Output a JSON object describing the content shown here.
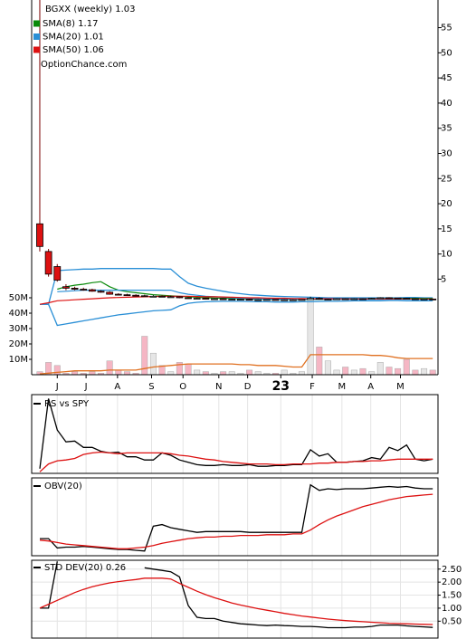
{
  "chart_data": [
    {
      "type": "candlestick",
      "title": "BGXX (weekly) 1.03",
      "source": "OptionChance.com",
      "xlim": [
        -0.93,
        45.6
      ],
      "ylim": [
        -14,
        60.5
      ],
      "y2lim": [
        0,
        243.5
      ],
      "xticks": [
        {
          "value": 2,
          "label": "J"
        },
        {
          "value": 5.3,
          "label": "J"
        },
        {
          "value": 8.9,
          "label": "A"
        },
        {
          "value": 12.8,
          "label": "S"
        },
        {
          "value": 16.4,
          "label": "O"
        },
        {
          "value": 20.5,
          "label": "N"
        },
        {
          "value": 23.8,
          "label": "D"
        },
        {
          "value": 27.6,
          "label": "23"
        },
        {
          "value": 31.2,
          "label": "F"
        },
        {
          "value": 34.6,
          "label": "M"
        },
        {
          "value": 37.9,
          "label": "A"
        },
        {
          "value": 41.3,
          "label": "M"
        }
      ],
      "emphasized_xtick": 7,
      "yticks": [
        5,
        10,
        15,
        20,
        25,
        30,
        35,
        40,
        45,
        50,
        55
      ],
      "y2ticks": [
        {
          "value": 10,
          "label": "10M"
        },
        {
          "value": 20,
          "label": "20M"
        },
        {
          "value": 30,
          "label": "30M"
        },
        {
          "value": 40,
          "label": "40M"
        },
        {
          "value": 50,
          "label": "50M"
        }
      ],
      "up_color": "#ffffff",
      "down_color": "#dd1111",
      "open": [
        16,
        10.5,
        7.5,
        3.5,
        3.2,
        3.0,
        2.9,
        2.6,
        2.4,
        2.0,
        1.9,
        1.8,
        1.7,
        1.6,
        1.6,
        1.5,
        1.5,
        1.3,
        1.2,
        1.2,
        1.1,
        1.1,
        1.0,
        1.0,
        1.0,
        0.9,
        0.9,
        0.95,
        0.9,
        0.9,
        0.9,
        0.95,
        1.2,
        1.0,
        1.0,
        1.1,
        1.0,
        1.1,
        1.05,
        1.2,
        1.3,
        1.25,
        1.2,
        1.1,
        1.0,
        1.05
      ],
      "high": [
        60.5,
        11,
        8,
        4,
        3.5,
        3.3,
        3.1,
        2.8,
        2.6,
        2.2,
        2.1,
        2.0,
        1.9,
        1.8,
        1.8,
        1.7,
        1.6,
        1.4,
        1.3,
        1.3,
        1.2,
        1.2,
        1.1,
        1.1,
        1.1,
        1.0,
        1.0,
        1.0,
        1.0,
        1.0,
        1.0,
        1.5,
        1.4,
        1.1,
        1.2,
        1.2,
        1.2,
        1.2,
        1.3,
        1.4,
        1.4,
        1.3,
        1.3,
        1.2,
        1.1,
        1.1
      ],
      "low": [
        10.5,
        5.5,
        4.5,
        2.8,
        2.8,
        2.7,
        2.5,
        2.3,
        1.9,
        1.8,
        1.7,
        1.6,
        1.5,
        1.5,
        1.4,
        1.4,
        1.2,
        1.1,
        1.1,
        1.0,
        1.0,
        0.9,
        0.9,
        0.9,
        0.8,
        0.8,
        0.85,
        0.8,
        0.8,
        0.8,
        0.85,
        0.9,
        0.9,
        0.9,
        0.95,
        0.9,
        0.95,
        0.95,
        1.0,
        1.1,
        1.1,
        1.1,
        1.0,
        0.95,
        0.95,
        0.95
      ],
      "close": [
        11.5,
        6,
        4.8,
        3.2,
        3.0,
        2.9,
        2.6,
        2.4,
        2.0,
        1.9,
        1.8,
        1.7,
        1.6,
        1.6,
        1.5,
        1.5,
        1.3,
        1.2,
        1.2,
        1.1,
        1.1,
        1.0,
        1.0,
        1.0,
        0.9,
        0.9,
        0.95,
        0.9,
        0.9,
        0.9,
        0.95,
        1.2,
        1.0,
        1.0,
        1.1,
        1.0,
        1.1,
        1.05,
        1.2,
        1.3,
        1.25,
        1.2,
        1.1,
        1.0,
        1.05,
        1.03
      ],
      "series": [
        {
          "name": "SMA(8) 1.17",
          "color": "#0a8a0a",
          "values": [
            null,
            null,
            3.0,
            3.5,
            3.8,
            4.0,
            4.3,
            4.5,
            3.5,
            2.8,
            2.5,
            2.3,
            2.1,
            1.9,
            1.8,
            1.7,
            1.6,
            1.5,
            1.4,
            1.3,
            1.25,
            1.2,
            1.15,
            1.1,
            1.05,
            1.0,
            1.0,
            0.95,
            0.95,
            0.92,
            0.92,
            0.95,
            0.98,
            1.0,
            1.02,
            1.05,
            1.05,
            1.06,
            1.08,
            1.1,
            1.12,
            1.15,
            1.17,
            1.18,
            1.17,
            1.17
          ]
        },
        {
          "name": "SMA(20) 1.01",
          "color": "#2a8fd6",
          "values": [
            null,
            null,
            2.5,
            2.6,
            2.7,
            2.8,
            2.8,
            2.8,
            2.8,
            2.8,
            2.8,
            2.8,
            2.8,
            2.8,
            2.8,
            2.8,
            2.3,
            2.0,
            1.8,
            1.6,
            1.5,
            1.4,
            1.3,
            1.2,
            1.15,
            1.1,
            1.05,
            1.0,
            1.0,
            0.98,
            0.97,
            0.98,
            1.0,
            1.0,
            1.0,
            1.0,
            1.0,
            1.0,
            1.0,
            1.0,
            1.0,
            1.01,
            1.02,
            1.02,
            1.01,
            1.01
          ]
        },
        {
          "name": "SMA(50) 1.06",
          "color": "#dd1111",
          "values": [
            0.0,
            0.3,
            0.7,
            0.8,
            0.9,
            1.0,
            1.1,
            1.2,
            1.3,
            1.35,
            1.4,
            1.45,
            1.5,
            1.55,
            1.6,
            1.6,
            1.6,
            1.6,
            1.55,
            1.5,
            1.5,
            1.45,
            1.4,
            1.35,
            1.3,
            1.3,
            1.25,
            1.2,
            1.2,
            1.15,
            1.15,
            1.1,
            1.1,
            1.1,
            1.1,
            1.08,
            1.08,
            1.07,
            1.07,
            1.06,
            1.06,
            1.06,
            1.06,
            1.06,
            1.06,
            1.06
          ]
        }
      ],
      "bands": {
        "color": "#2a8fd6",
        "upper": [
          0,
          0,
          6.7,
          6.8,
          6.9,
          7.0,
          7.0,
          7.1,
          7.1,
          7.1,
          7.1,
          7.1,
          7.1,
          7.1,
          7.0,
          7.0,
          5.5,
          4.2,
          3.6,
          3.2,
          2.9,
          2.6,
          2.3,
          2.1,
          1.9,
          1.8,
          1.7,
          1.6,
          1.55,
          1.5,
          1.45,
          1.4,
          1.35,
          1.3,
          1.3,
          1.3,
          1.3,
          1.3,
          1.3,
          1.3,
          1.3,
          1.3,
          1.35,
          1.35,
          1.3,
          1.3
        ],
        "lower": [
          0,
          0,
          -4.2,
          -3.9,
          -3.6,
          -3.3,
          -3.0,
          -2.7,
          -2.4,
          -2.1,
          -1.9,
          -1.7,
          -1.5,
          -1.3,
          -1.2,
          -1.1,
          -0.3,
          0.2,
          0.4,
          0.5,
          0.55,
          0.6,
          0.6,
          0.6,
          0.55,
          0.5,
          0.5,
          0.45,
          0.45,
          0.45,
          0.5,
          0.5,
          0.55,
          0.6,
          0.6,
          0.65,
          0.7,
          0.7,
          0.7,
          0.7,
          0.75,
          0.75,
          0.7,
          0.7,
          0.7,
          0.72
        ]
      },
      "volume": {
        "up_color": "#e6e6e6",
        "down_color": "#f5b6c4",
        "values": [
          2,
          8,
          6,
          1,
          2,
          1,
          2,
          1,
          9,
          3,
          2,
          1,
          25,
          14,
          6,
          2,
          8,
          7,
          3,
          2,
          1,
          2,
          2,
          1,
          3,
          2,
          1,
          1,
          3,
          1,
          2,
          50,
          18,
          9,
          3,
          5,
          3,
          4,
          2,
          8,
          5,
          4,
          10,
          3,
          4,
          3
        ],
        "ma_color": "#e07020",
        "ma": [
          0.5,
          1,
          1.5,
          2,
          2.5,
          2.5,
          2.5,
          2.5,
          3,
          3,
          3,
          3,
          4,
          5,
          5.5,
          6,
          6.5,
          7,
          7,
          7,
          7,
          7,
          7,
          6.5,
          6.5,
          6,
          6,
          6,
          5.5,
          5,
          5,
          13,
          13,
          13,
          13,
          13,
          13,
          13,
          12.5,
          12.5,
          12,
          11,
          10.5,
          10.5,
          10.5,
          10.5
        ]
      }
    },
    {
      "type": "line",
      "title": "RS vs SPY",
      "xlim": [
        -0.93,
        45.6
      ],
      "ylim": [
        0,
        100
      ],
      "series": [
        {
          "color": "#000000",
          "values": [
            6,
            95,
            55,
            40,
            41,
            33,
            33,
            28,
            26,
            27,
            21,
            21,
            17,
            17,
            26,
            23,
            17,
            14,
            11,
            10,
            10,
            11,
            10,
            10,
            11,
            9,
            9,
            10,
            10,
            11,
            11,
            30,
            22,
            25,
            14,
            14,
            15,
            16,
            20,
            18,
            33,
            29,
            36,
            18,
            16,
            18
          ]
        },
        {
          "color": "#dd1111",
          "values": [
            2,
            12,
            16,
            17,
            19,
            24,
            26,
            27,
            26,
            25,
            26,
            26,
            26,
            26,
            26,
            25,
            23,
            22,
            20,
            18,
            17,
            15,
            14,
            13,
            12,
            12,
            12,
            11,
            11,
            12,
            12,
            12,
            13,
            13,
            14,
            14,
            15,
            15,
            16,
            16,
            17,
            18,
            18,
            18,
            18,
            18
          ]
        }
      ]
    },
    {
      "type": "line",
      "title": "OBV(20)",
      "xlim": [
        -0.93,
        45.6
      ],
      "ylim": [
        0,
        100
      ],
      "series": [
        {
          "color": "#000000",
          "values": [
            22,
            22,
            10,
            11,
            11,
            12,
            11,
            10,
            9,
            8,
            8,
            7,
            6,
            38,
            40,
            36,
            34,
            32,
            30,
            31,
            31,
            31,
            31,
            31,
            30,
            30,
            30,
            30,
            30,
            30,
            30,
            91,
            84,
            86,
            85,
            86,
            86,
            86,
            87,
            88,
            89,
            88,
            89,
            87,
            86,
            86
          ]
        },
        {
          "color": "#dd1111",
          "values": [
            20,
            19,
            17,
            15,
            14,
            13,
            12,
            11,
            10,
            9,
            9,
            10,
            11,
            13,
            16,
            18,
            20,
            22,
            23,
            24,
            24,
            25,
            25,
            26,
            26,
            26,
            27,
            27,
            27,
            28,
            28,
            33,
            40,
            46,
            51,
            55,
            59,
            63,
            66,
            69,
            72,
            74,
            76,
            77,
            78,
            79
          ]
        }
      ]
    },
    {
      "type": "line",
      "title": "STD DEV(20) 0.26",
      "xlim": [
        -0.93,
        45.6
      ],
      "ylim": [
        -0.15,
        2.84
      ],
      "yticks": [
        {
          "value": 0.5,
          "label": "0.50"
        },
        {
          "value": 1,
          "label": "1.00"
        },
        {
          "value": 1.5,
          "label": "1.50"
        },
        {
          "value": 2,
          "label": "2.00"
        },
        {
          "value": 2.5,
          "label": "2.50"
        }
      ],
      "series": [
        {
          "color": "#000000",
          "values": [
            1.0,
            1.0,
            2.8,
            null,
            null,
            null,
            null,
            null,
            null,
            null,
            null,
            null,
            2.55,
            2.5,
            2.45,
            2.4,
            2.2,
            1.1,
            0.65,
            0.6,
            0.6,
            0.5,
            0.45,
            0.4,
            0.38,
            0.35,
            0.33,
            0.35,
            0.33,
            0.32,
            0.3,
            0.3,
            0.28,
            0.25,
            0.25,
            0.25,
            0.27,
            0.27,
            0.3,
            0.35,
            0.35,
            0.35,
            0.32,
            0.3,
            0.28,
            0.26
          ]
        },
        {
          "color": "#dd1111",
          "values": [
            1.0,
            1.15,
            1.3,
            1.45,
            1.6,
            1.72,
            1.82,
            1.9,
            1.97,
            2.02,
            2.06,
            2.1,
            2.15,
            2.15,
            2.15,
            2.12,
            1.95,
            1.8,
            1.65,
            1.52,
            1.4,
            1.3,
            1.2,
            1.12,
            1.05,
            0.98,
            0.92,
            0.86,
            0.8,
            0.75,
            0.7,
            0.66,
            0.62,
            0.58,
            0.55,
            0.52,
            0.5,
            0.48,
            0.46,
            0.44,
            0.42,
            0.41,
            0.4,
            0.39,
            0.38,
            0.37
          ]
        }
      ]
    }
  ]
}
